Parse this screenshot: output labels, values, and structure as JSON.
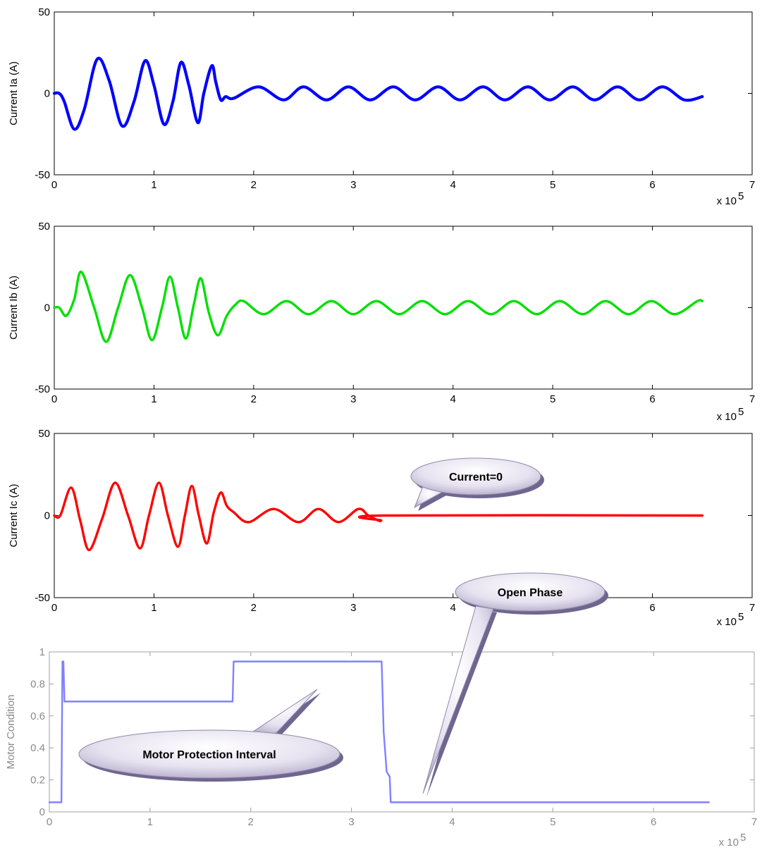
{
  "chart_data": [
    {
      "type": "line",
      "ylabel": "Current Ia (A)",
      "xlim": [
        0,
        7
      ],
      "ylim": [
        -50,
        50
      ],
      "xticks": [
        "0",
        "1",
        "2",
        "3",
        "4",
        "5",
        "6",
        "7"
      ],
      "yticks": [
        "-50",
        "0",
        "50"
      ],
      "x_multiplier": "x 10",
      "x_multiplier_exp": "5",
      "color": "#0000ff",
      "series": [
        {
          "x": [
            0,
            0.05,
            0.1,
            0.2,
            0.3,
            0.43,
            0.55,
            0.68,
            0.8,
            0.91,
            1.0,
            1.1,
            1.19,
            1.27,
            1.35,
            1.44,
            1.5,
            1.58,
            1.62,
            1.67,
            1.72,
            1.8,
            2.05,
            2.3,
            2.5,
            2.73,
            2.95,
            3.17,
            3.4,
            3.62,
            3.85,
            4.07,
            4.3,
            4.52,
            4.75,
            4.97,
            5.2,
            5.42,
            5.65,
            5.87,
            6.1,
            6.32,
            6.5
          ],
          "y": [
            0,
            0,
            -5,
            -22,
            -10,
            21,
            8,
            -20,
            -5,
            20,
            5,
            -19,
            -5,
            19,
            5,
            -18,
            0,
            17,
            7,
            -4,
            -2,
            -3,
            4,
            -4,
            4,
            -4,
            4,
            -4,
            4,
            -4,
            4,
            -4,
            4,
            -4,
            4,
            -4,
            4,
            -4,
            4,
            -4,
            4,
            -4,
            -2
          ]
        }
      ]
    },
    {
      "type": "line",
      "ylabel": "Current Ib (A)",
      "xlim": [
        0,
        7
      ],
      "ylim": [
        -50,
        50
      ],
      "xticks": [
        "0",
        "1",
        "2",
        "3",
        "4",
        "5",
        "6",
        "7"
      ],
      "yticks": [
        "-50",
        "0",
        "50"
      ],
      "x_multiplier": "x 10",
      "x_multiplier_exp": "5",
      "color": "#00e000",
      "series": [
        {
          "x": [
            0,
            0.05,
            0.12,
            0.2,
            0.27,
            0.4,
            0.52,
            0.64,
            0.76,
            0.88,
            0.98,
            1.08,
            1.16,
            1.24,
            1.32,
            1.4,
            1.47,
            1.55,
            1.64,
            1.73,
            1.82,
            1.9,
            2.1,
            2.33,
            2.55,
            2.78,
            3.0,
            3.23,
            3.46,
            3.69,
            3.92,
            4.15,
            4.38,
            4.61,
            4.84,
            5.07,
            5.3,
            5.53,
            5.76,
            5.99,
            6.22,
            6.45,
            6.5
          ],
          "y": [
            0,
            0,
            -5,
            5,
            22,
            0,
            -21,
            0,
            20,
            0,
            -20,
            0,
            19,
            0,
            -19,
            2,
            18,
            -3,
            -17,
            -5,
            2,
            4,
            -4,
            4,
            -4,
            4,
            -4,
            4,
            -4,
            4,
            -4,
            4,
            -4,
            4,
            -4,
            4,
            -4,
            4,
            -4,
            4,
            -4,
            4,
            4
          ]
        }
      ]
    },
    {
      "type": "line",
      "ylabel": "Current Ic (A)",
      "xlim": [
        0,
        7
      ],
      "ylim": [
        -50,
        50
      ],
      "xticks": [
        "0",
        "1",
        "2",
        "3",
        "4",
        "5",
        "6",
        "7"
      ],
      "yticks": [
        "-50",
        "0",
        "50"
      ],
      "x_multiplier": "x 10",
      "x_multiplier_exp": "5",
      "color": "#ff0000",
      "series": [
        {
          "x": [
            0,
            0.06,
            0.17,
            0.26,
            0.35,
            0.48,
            0.61,
            0.74,
            0.86,
            0.95,
            1.05,
            1.14,
            1.24,
            1.31,
            1.38,
            1.45,
            1.53,
            1.6,
            1.67,
            1.73,
            1.8,
            1.95,
            2.2,
            2.45,
            2.65,
            2.85,
            3.05,
            3.15,
            3.25,
            3.28,
            3.3,
            6.5
          ],
          "y": [
            0,
            0,
            17,
            -3,
            -21,
            -2,
            20,
            0,
            -20,
            0,
            20,
            0,
            -19,
            0,
            18,
            0,
            -17,
            2,
            14,
            6,
            2,
            -4,
            4,
            -4,
            4,
            -4,
            4,
            0,
            -3,
            -3,
            0,
            0
          ]
        }
      ],
      "annotation": "Current=0"
    },
    {
      "type": "line",
      "ylabel": "Motor Condition",
      "xlim": [
        0,
        7
      ],
      "ylim": [
        0,
        1
      ],
      "xticks": [
        "0",
        "1",
        "2",
        "3",
        "4",
        "5",
        "6",
        "7"
      ],
      "yticks": [
        "0",
        "0.2",
        "0.4",
        "0.6",
        "0.8",
        "1"
      ],
      "x_multiplier": "x 10",
      "x_multiplier_exp": "5",
      "color": "#8080ff",
      "series": [
        {
          "x": [
            0,
            0.12,
            0.13,
            0.14,
            0.15,
            0.16,
            0.17,
            1.82,
            1.83,
            3.3,
            3.32,
            3.35,
            3.38,
            3.39,
            3.42,
            6.55
          ],
          "y": [
            0.06,
            0.06,
            0.94,
            0.94,
            0.69,
            0.69,
            0.69,
            0.69,
            0.94,
            0.94,
            0.5,
            0.25,
            0.22,
            0.06,
            0.06,
            0.06
          ]
        }
      ],
      "annotations": [
        "Motor Protection Interval",
        "Open Phase"
      ]
    }
  ]
}
